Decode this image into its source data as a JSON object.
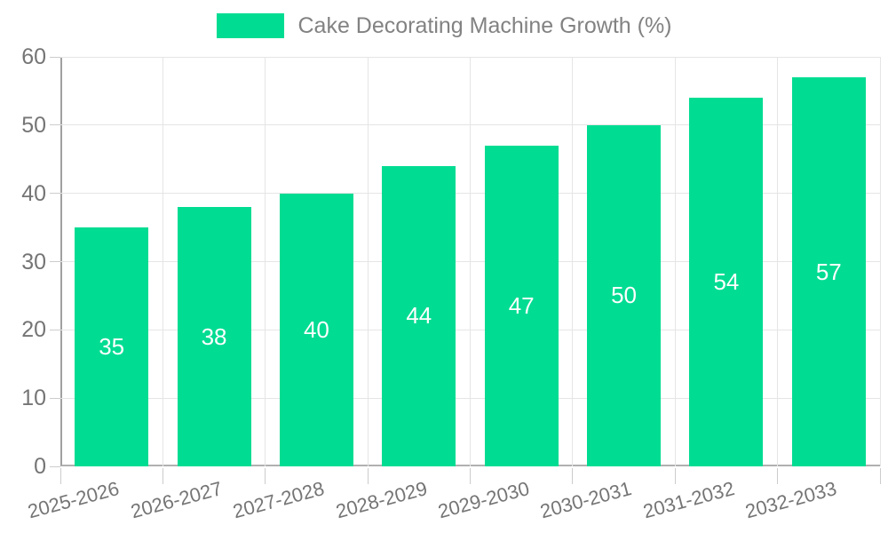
{
  "chart_data": {
    "type": "bar",
    "title": "Cake Decorating Machine Growth (%)",
    "categories": [
      "2025-2026",
      "2026-2027",
      "2027-2028",
      "2028-2029",
      "2029-2030",
      "2030-2031",
      "2031-2032",
      "2032-2033"
    ],
    "values": [
      35,
      38,
      40,
      44,
      47,
      50,
      54,
      57
    ],
    "xlabel": "",
    "ylabel": "",
    "ylim": [
      0,
      60
    ],
    "yticks": [
      0,
      10,
      20,
      30,
      40,
      50,
      60
    ],
    "grid": true,
    "legend_position": "top",
    "bar_color": "#00DC92",
    "value_label_color": "#ffffff",
    "axis_text_color": "#757575",
    "gridline_color": "#e5e5e5"
  }
}
